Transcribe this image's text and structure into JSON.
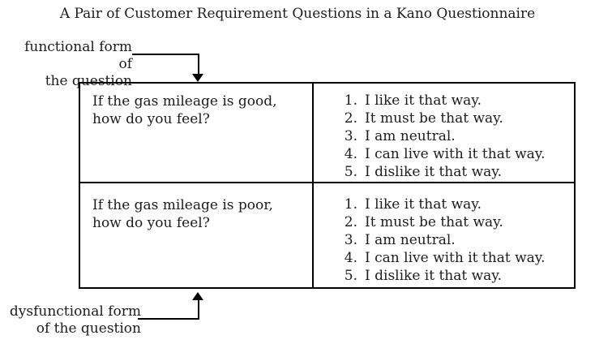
{
  "title": "A Pair of Customer Requirement Questions in a Kano Questionnaire",
  "labels": {
    "functional_line1": "functional form of",
    "functional_line2": "the question",
    "dysfunctional_line1": "dysfunctional form",
    "dysfunctional_line2": "of the question"
  },
  "table": {
    "rows": [
      {
        "question_line1": "If the gas mileage is good,",
        "question_line2": "how do you feel?",
        "options": [
          {
            "num": "1.",
            "text": "I like it that way."
          },
          {
            "num": "2.",
            "text": "It must be that way."
          },
          {
            "num": "3.",
            "text": "I am neutral."
          },
          {
            "num": "4.",
            "text": "I can live with it that way."
          },
          {
            "num": "5.",
            "text": "I dislike it that way."
          }
        ]
      },
      {
        "question_line1": "If the gas mileage is poor,",
        "question_line2": "how do you feel?",
        "options": [
          {
            "num": "1.",
            "text": "I like it that way."
          },
          {
            "num": "2.",
            "text": "It must be that way."
          },
          {
            "num": "3.",
            "text": "I am neutral."
          },
          {
            "num": "4.",
            "text": "I can live with it that way."
          },
          {
            "num": "5.",
            "text": "I dislike it that way."
          }
        ]
      }
    ]
  },
  "colors": {
    "text": "#1c1c1c",
    "border": "#000000",
    "background": "#ffffff"
  }
}
